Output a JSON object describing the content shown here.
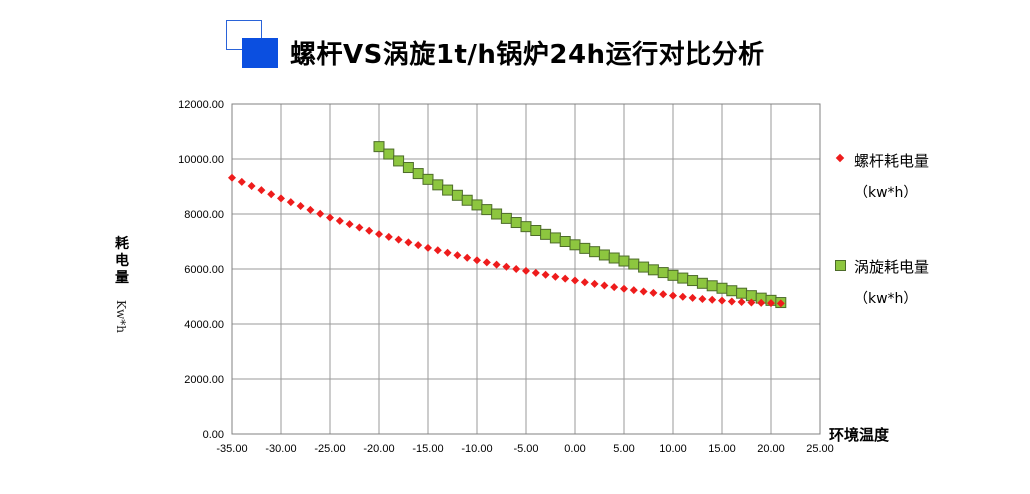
{
  "title": "螺杆VS涡旋1t/h锅炉24h运行对比分析",
  "colors": {
    "screw": "#ee1c1c",
    "scroll_fill": "#8dc63f",
    "scroll_edge": "#4d6b2a",
    "grid": "#9a9a9a",
    "title_icon": "#0b4fe0"
  },
  "legend": [
    {
      "name": "螺杆耗电量",
      "unit": "（kw*h）",
      "marker": "diamond"
    },
    {
      "name": "涡旋耗电量",
      "unit": "（kw*h）",
      "marker": "square"
    }
  ],
  "chart_data": {
    "type": "scatter",
    "title": "螺杆VS涡旋1t/h锅炉24h运行对比分析",
    "xlabel": "环境温度",
    "ylabel": "耗电量",
    "ylabel_unit": "Kw*h",
    "xlim": [
      -35,
      25
    ],
    "ylim": [
      0,
      12000
    ],
    "x_ticks": [
      "-35.00",
      "-30.00",
      "-25.00",
      "-20.00",
      "-15.00",
      "-10.00",
      "-5.00",
      "0.00",
      "5.00",
      "10.00",
      "15.00",
      "20.00",
      "25.00"
    ],
    "y_ticks": [
      "0.00",
      "2000.00",
      "4000.00",
      "6000.00",
      "8000.00",
      "10000.00",
      "12000.00"
    ],
    "grid": true,
    "legend_position": "right",
    "series": [
      {
        "name": "螺杆耗电量",
        "marker": "diamond",
        "x": [
          -35,
          -34,
          -33,
          -32,
          -31,
          -30,
          -29,
          -28,
          -27,
          -26,
          -25,
          -24,
          -23,
          -22,
          -21,
          -20,
          -19,
          -18,
          -17,
          -16,
          -15,
          -14,
          -13,
          -12,
          -11,
          -10,
          -9,
          -8,
          -7,
          -6,
          -5,
          -4,
          -3,
          -2,
          -1,
          0,
          1,
          2,
          3,
          4,
          5,
          6,
          7,
          8,
          9,
          10,
          11,
          12,
          13,
          14,
          15,
          16,
          17,
          18,
          19,
          20,
          21
        ],
        "y": [
          9320,
          9170,
          9020,
          8870,
          8720,
          8570,
          8430,
          8290,
          8150,
          8010,
          7870,
          7750,
          7630,
          7510,
          7390,
          7270,
          7170,
          7070,
          6970,
          6870,
          6770,
          6680,
          6590,
          6500,
          6410,
          6320,
          6240,
          6160,
          6080,
          6000,
          5930,
          5860,
          5790,
          5720,
          5650,
          5580,
          5520,
          5460,
          5400,
          5340,
          5280,
          5230,
          5180,
          5130,
          5080,
          5030,
          4990,
          4950,
          4910,
          4880,
          4850,
          4820,
          4800,
          4780,
          4770,
          4760,
          4750
        ]
      },
      {
        "name": "涡旋耗电量",
        "marker": "square",
        "x": [
          -20,
          -19,
          -18,
          -17,
          -16,
          -15,
          -14,
          -13,
          -12,
          -11,
          -10,
          -9,
          -8,
          -7,
          -6,
          -5,
          -4,
          -3,
          -2,
          -1,
          0,
          1,
          2,
          3,
          4,
          5,
          6,
          7,
          8,
          9,
          10,
          11,
          12,
          13,
          14,
          15,
          16,
          17,
          18,
          19,
          20,
          21
        ],
        "y": [
          10450,
          10180,
          9930,
          9690,
          9470,
          9260,
          9060,
          8870,
          8680,
          8500,
          8330,
          8160,
          8000,
          7840,
          7690,
          7540,
          7400,
          7260,
          7130,
          7000,
          6880,
          6750,
          6630,
          6510,
          6400,
          6290,
          6180,
          6070,
          5970,
          5870,
          5770,
          5670,
          5580,
          5480,
          5390,
          5300,
          5210,
          5120,
          5030,
          4940,
          4860,
          4780
        ]
      }
    ]
  }
}
